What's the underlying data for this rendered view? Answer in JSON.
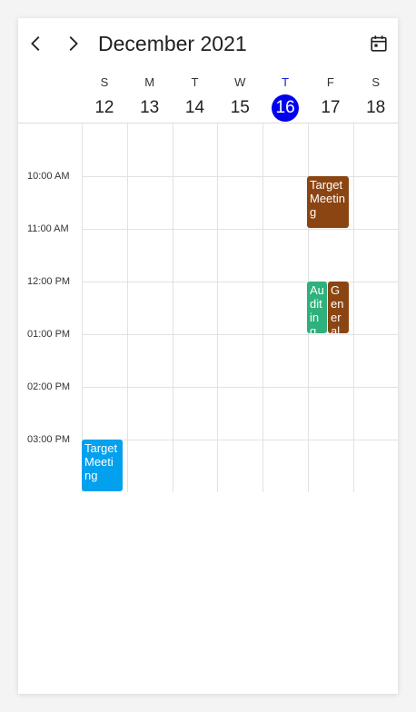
{
  "header": {
    "title": "December 2021",
    "prev_icon": "chevron-left-icon",
    "next_icon": "chevron-right-icon",
    "today_icon": "calendar-today-icon"
  },
  "days": [
    {
      "letter": "S",
      "number": "12",
      "today": false
    },
    {
      "letter": "M",
      "number": "13",
      "today": false
    },
    {
      "letter": "T",
      "number": "14",
      "today": false
    },
    {
      "letter": "W",
      "number": "15",
      "today": false
    },
    {
      "letter": "T",
      "number": "16",
      "today": true
    },
    {
      "letter": "F",
      "number": "17",
      "today": false
    },
    {
      "letter": "S",
      "number": "18",
      "today": false
    }
  ],
  "time_labels": [
    "10:00 AM",
    "11:00 AM",
    "12:00 PM",
    "01:00 PM",
    "02:00 PM",
    "03:00 PM"
  ],
  "appointments": [
    {
      "subject": "Target Meeting",
      "color": "#8b4513"
    },
    {
      "subject": "Auditing",
      "color": "#2eb17c"
    },
    {
      "subject": "General",
      "color": "#8b4513"
    },
    {
      "subject": "Target Meeting",
      "color": "#03a0ee"
    }
  ],
  "colors": {
    "today_circle": "#0000ee",
    "today_letter": "#1a1ad4"
  }
}
